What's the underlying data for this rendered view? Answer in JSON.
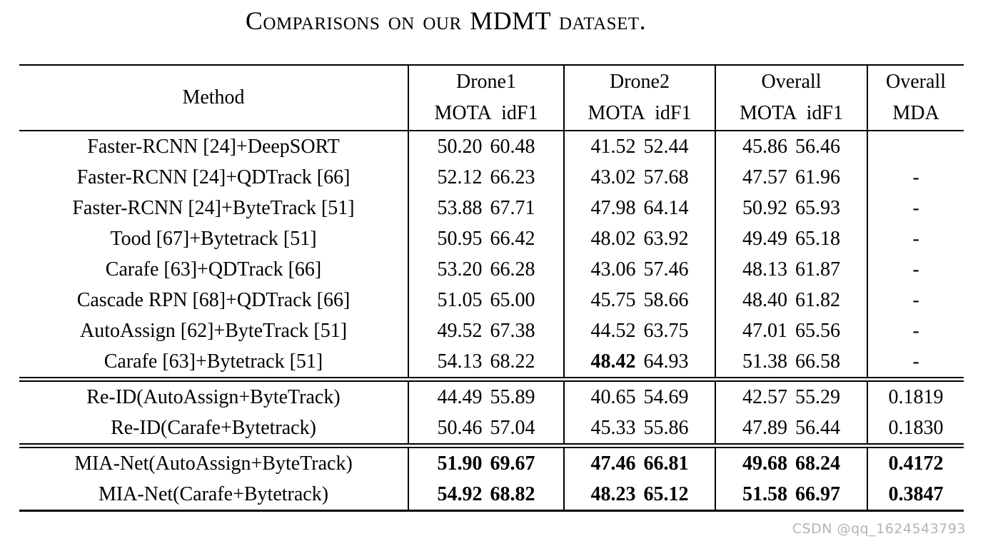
{
  "title": "Comparisons on our MDMT dataset.",
  "watermark": "CSDN @qq_1624543793",
  "colors": {
    "text": "#000000",
    "rules": "#000000",
    "watermark": "#b4b4b4",
    "background": "#ffffff"
  },
  "table": {
    "header": {
      "method": "Method",
      "groups": [
        {
          "label": "Drone1",
          "sub": "MOTA idF1"
        },
        {
          "label": "Drone2",
          "sub": "MOTA idF1"
        },
        {
          "label": "Overall",
          "sub": "MOTA idF1"
        },
        {
          "label": "Overall",
          "sub": "MDA"
        }
      ]
    },
    "sections": [
      {
        "rows": [
          {
            "method": "Faster-RCNN [24]+DeepSORT",
            "values": [
              "50.20",
              "60.48",
              "41.52",
              "52.44",
              "45.86",
              "56.46",
              ""
            ],
            "bold": []
          },
          {
            "method": "Faster-RCNN [24]+QDTrack [66]",
            "values": [
              "52.12",
              "66.23",
              "43.02",
              "57.68",
              "47.57",
              "61.96",
              "-"
            ],
            "bold": []
          },
          {
            "method": "Faster-RCNN [24]+ByteTrack [51]",
            "values": [
              "53.88",
              "67.71",
              "47.98",
              "64.14",
              "50.92",
              "65.93",
              "-"
            ],
            "bold": []
          },
          {
            "method": "Tood [67]+Bytetrack [51]",
            "values": [
              "50.95",
              "66.42",
              "48.02",
              "63.92",
              "49.49",
              "65.18",
              "-"
            ],
            "bold": []
          },
          {
            "method": "Carafe [63]+QDTrack [66]",
            "values": [
              "53.20",
              "66.28",
              "43.06",
              "57.46",
              "48.13",
              "61.87",
              "-"
            ],
            "bold": []
          },
          {
            "method": "Cascade RPN [68]+QDTrack [66]",
            "values": [
              "51.05",
              "65.00",
              "45.75",
              "58.66",
              "48.40",
              "61.82",
              "-"
            ],
            "bold": []
          },
          {
            "method": "AutoAssign [62]+ByteTrack [51]",
            "values": [
              "49.52",
              "67.38",
              "44.52",
              "63.75",
              "47.01",
              "65.56",
              "-"
            ],
            "bold": []
          },
          {
            "method": "Carafe [63]+Bytetrack [51]",
            "values": [
              "54.13",
              "68.22",
              "48.42",
              "64.93",
              "51.38",
              "66.58",
              "-"
            ],
            "bold": [
              2
            ]
          }
        ]
      },
      {
        "rows": [
          {
            "method": "Re-ID(AutoAssign+ByteTrack)",
            "values": [
              "44.49",
              "55.89",
              "40.65",
              "54.69",
              "42.57",
              "55.29",
              "0.1819"
            ],
            "bold": []
          },
          {
            "method": "Re-ID(Carafe+Bytetrack)",
            "values": [
              "50.46",
              "57.04",
              "45.33",
              "55.86",
              "47.89",
              "56.44",
              "0.1830"
            ],
            "bold": []
          }
        ]
      },
      {
        "rows": [
          {
            "method": "MIA-Net(AutoAssign+ByteTrack)",
            "values": [
              "51.90",
              "69.67",
              "47.46",
              "66.81",
              "49.68",
              "68.24",
              "0.4172"
            ],
            "bold": [
              0,
              1,
              2,
              3,
              4,
              5,
              6
            ]
          },
          {
            "method": "MIA-Net(Carafe+Bytetrack)",
            "values": [
              "54.92",
              "68.82",
              "48.23",
              "65.12",
              "51.58",
              "66.97",
              "0.3847"
            ],
            "bold": [
              0,
              1,
              2,
              3,
              4,
              5,
              6
            ]
          }
        ]
      }
    ]
  }
}
